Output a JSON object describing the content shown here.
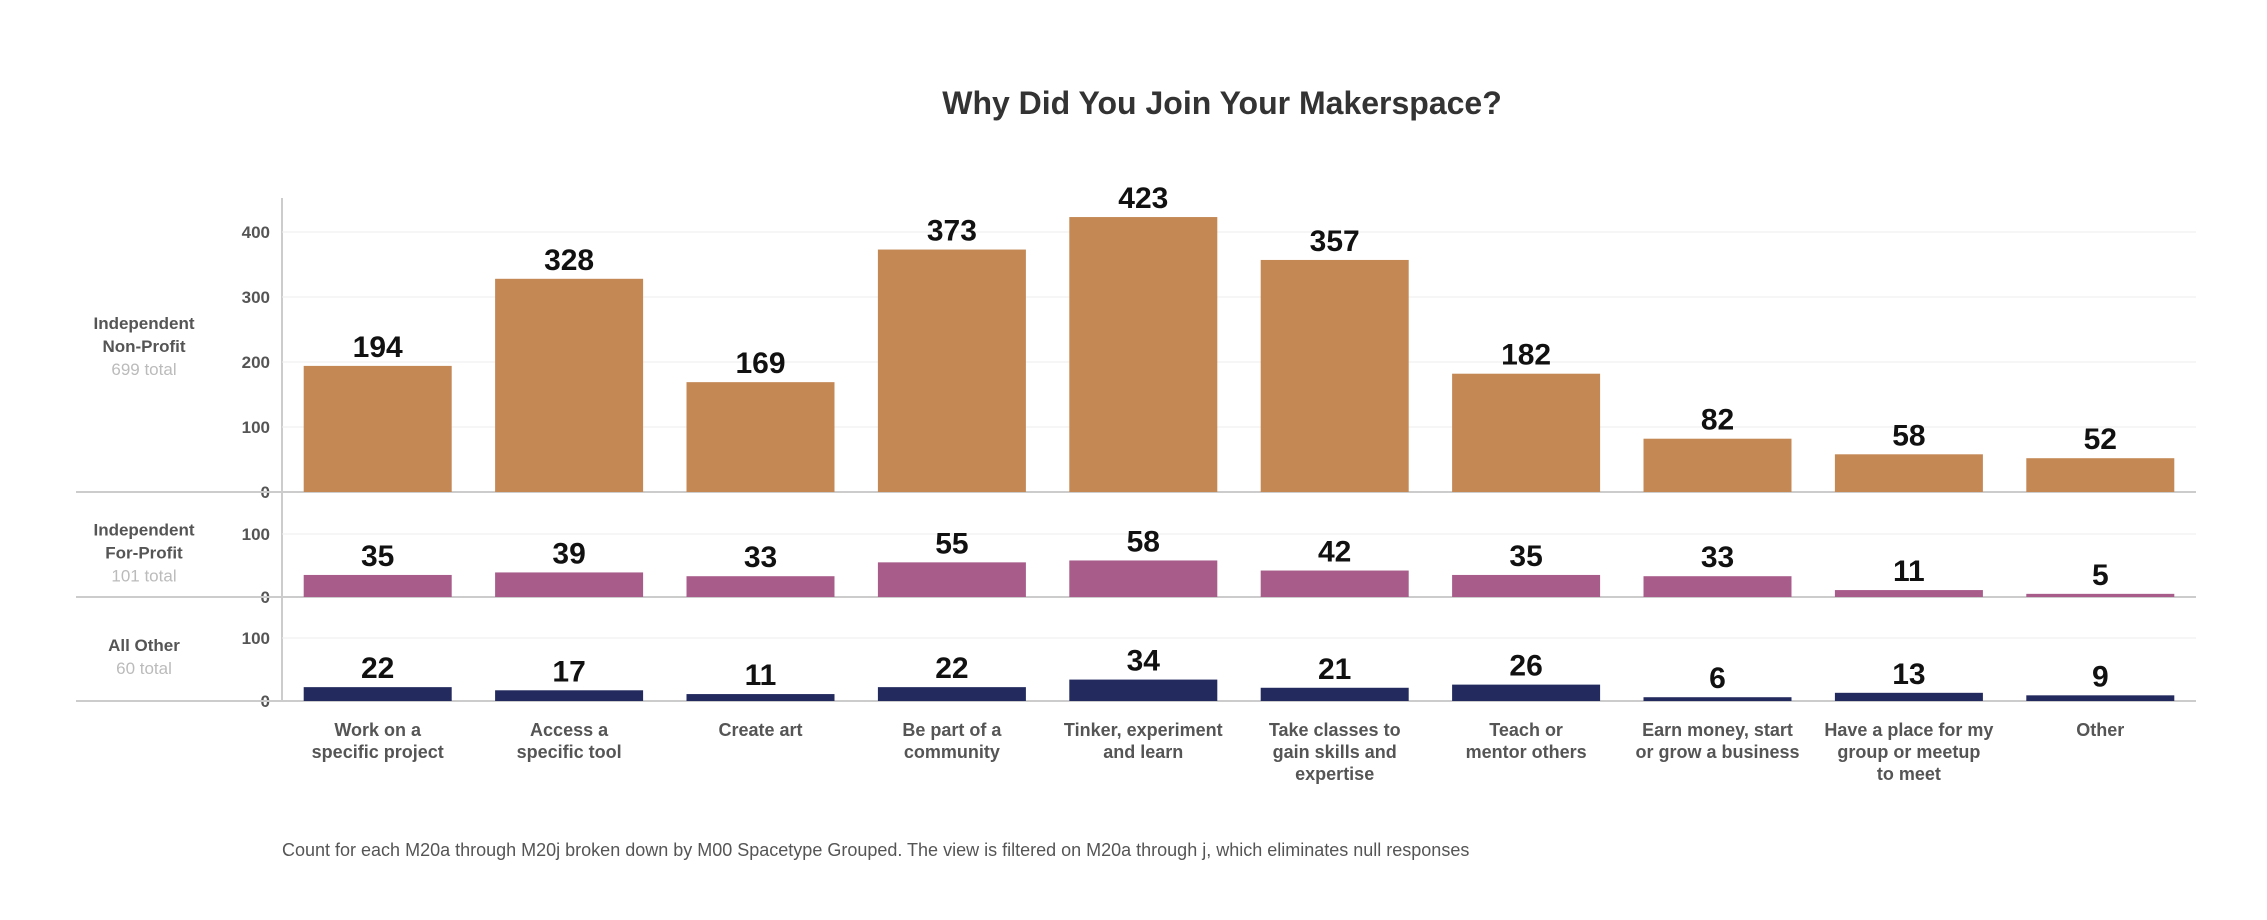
{
  "chart_data": {
    "type": "bar",
    "title": "Why Did You Join Your Makerspace?",
    "categories": [
      [
        "Work on a",
        "specific project"
      ],
      [
        "Access a",
        "specific tool"
      ],
      [
        "Create art"
      ],
      [
        "Be part of a",
        "community"
      ],
      [
        "Tinker, experiment",
        "and learn"
      ],
      [
        "Take classes to",
        "gain skills and",
        "expertise"
      ],
      [
        "Teach or",
        "mentor others"
      ],
      [
        "Earn money, start",
        "or grow a business"
      ],
      [
        "Have a place for my",
        "group or meetup",
        "to meet"
      ],
      [
        "Other"
      ]
    ],
    "panels": [
      {
        "name": [
          "Independent",
          "Non-Profit"
        ],
        "total": "699 total",
        "color": "#c48855",
        "ticks": [
          0,
          100,
          200,
          300,
          400
        ],
        "ylim": [
          0,
          430
        ],
        "values": [
          194,
          328,
          169,
          373,
          423,
          357,
          182,
          82,
          58,
          52
        ]
      },
      {
        "name": [
          "Independent",
          "For-Profit"
        ],
        "total": "101 total",
        "color": "#a75c8a",
        "ticks": [
          0,
          100
        ],
        "ylim": [
          0,
          140
        ],
        "values": [
          35,
          39,
          33,
          55,
          58,
          42,
          35,
          33,
          11,
          5
        ]
      },
      {
        "name": [
          "All Other"
        ],
        "total": "60 total",
        "color": "#232a5e",
        "ticks": [
          0,
          100
        ],
        "ylim": [
          0,
          140
        ],
        "values": [
          22,
          17,
          11,
          22,
          34,
          21,
          26,
          6,
          13,
          9
        ]
      }
    ],
    "grid": true,
    "caption": "Count  for each M20a through M20j broken down by M00 Spacetype Grouped. The view is filtered on M20a through j, which eliminates null responses"
  }
}
